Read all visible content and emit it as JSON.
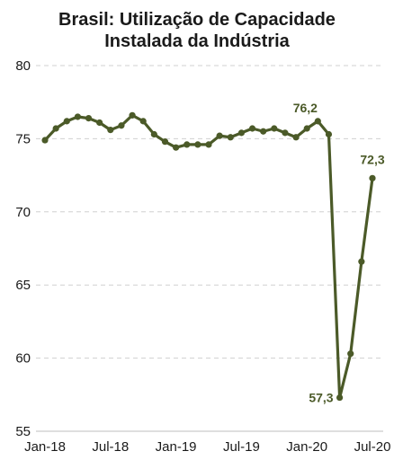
{
  "chart_data": {
    "type": "line",
    "title_lines": [
      "Brasil: Utilização de Capacidade",
      "Instalada da Indústria"
    ],
    "x": [
      "Jan-18",
      "Feb-18",
      "Mar-18",
      "Apr-18",
      "May-18",
      "Jun-18",
      "Jul-18",
      "Aug-18",
      "Sep-18",
      "Oct-18",
      "Nov-18",
      "Dec-18",
      "Jan-19",
      "Feb-19",
      "Mar-19",
      "Apr-19",
      "May-19",
      "Jun-19",
      "Jul-19",
      "Aug-19",
      "Sep-19",
      "Oct-19",
      "Nov-19",
      "Dec-19",
      "Jan-20",
      "Feb-20",
      "Mar-20",
      "Apr-20",
      "May-20",
      "Jun-20",
      "Jul-20"
    ],
    "xticks": [
      "Jan-18",
      "Jul-18",
      "Jan-19",
      "Jul-19",
      "Jan-20",
      "Jul-20"
    ],
    "series": [
      {
        "values": [
          74.9,
          75.7,
          76.2,
          76.5,
          76.4,
          76.1,
          75.6,
          75.9,
          76.6,
          76.2,
          75.3,
          74.8,
          74.4,
          74.6,
          74.6,
          74.6,
          75.2,
          75.1,
          75.4,
          75.7,
          75.5,
          75.7,
          75.4,
          75.1,
          75.7,
          76.2,
          75.3,
          57.3,
          60.3,
          66.6,
          72.3
        ],
        "color": "#4b5a28"
      }
    ],
    "annotations": [
      {
        "index": 25,
        "text": "76,2"
      },
      {
        "index": 27,
        "text": "57,3"
      },
      {
        "index": 30,
        "text": "72,3"
      }
    ],
    "yticks": [
      "55",
      "60",
      "65",
      "70",
      "75",
      "80"
    ],
    "ylim": [
      55,
      80
    ],
    "grid": "horizontal-dashed"
  }
}
